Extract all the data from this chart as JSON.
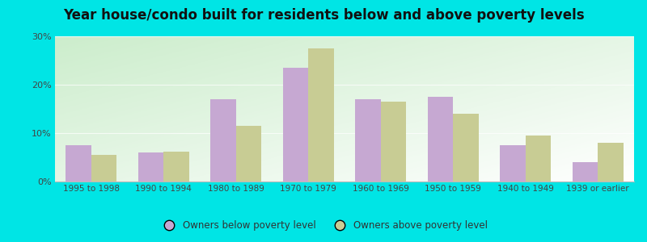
{
  "title": "Year house/condo built for residents below and above poverty levels",
  "categories": [
    "1995 to 1998",
    "1990 to 1994",
    "1980 to 1989",
    "1970 to 1979",
    "1960 to 1969",
    "1950 to 1959",
    "1940 to 1949",
    "1939 or earlier"
  ],
  "below_poverty": [
    7.5,
    6.0,
    17.0,
    23.5,
    17.0,
    17.5,
    7.5,
    4.0
  ],
  "above_poverty": [
    5.5,
    6.2,
    11.5,
    27.5,
    16.5,
    14.0,
    9.5,
    8.0
  ],
  "below_color": "#c6a8d2",
  "above_color": "#c8cc94",
  "ylim": [
    0,
    30
  ],
  "yticks": [
    0,
    10,
    20,
    30
  ],
  "yticklabels": [
    "0%",
    "10%",
    "20%",
    "30%"
  ],
  "bg_topleft": "#c8e6c9",
  "bg_bottomright": "#f0fff0",
  "outer_bg": "#00e5e5",
  "legend_below": "Owners below poverty level",
  "legend_above": "Owners above poverty level",
  "bar_width": 0.35,
  "title_fontsize": 12,
  "tick_fontsize": 7.5,
  "legend_fontsize": 8.5
}
